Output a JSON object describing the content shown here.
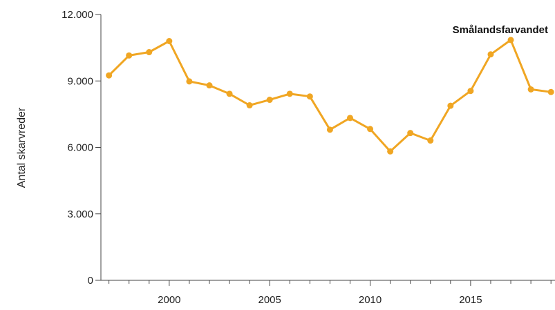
{
  "chart_data": {
    "type": "line",
    "title": "Smålandsfarvandet",
    "xlabel": "",
    "ylabel": "Antal skarvreder",
    "xlim": [
      1996.6,
      2019.2
    ],
    "ylim": [
      0,
      12000
    ],
    "x_ticks": [
      2000,
      2005,
      2010,
      2015
    ],
    "x_tick_labels": [
      "2000",
      "2005",
      "2010",
      "2015"
    ],
    "y_ticks": [
      0,
      3000,
      6000,
      9000,
      12000
    ],
    "y_tick_labels": [
      "0",
      "3.000",
      "6.000",
      "9.000",
      "12.000"
    ],
    "grid": false,
    "color": "#f0a623",
    "series": [
      {
        "x": [
          1997,
          1998,
          1999,
          2000,
          2001,
          2002,
          2003,
          2004,
          2005,
          2006,
          2007,
          2008,
          2009,
          2010,
          2011,
          2012,
          2013,
          2014,
          2015,
          2016,
          2017,
          2018,
          2019
        ],
        "values": [
          9250,
          10150,
          10300,
          10800,
          8980,
          8800,
          8420,
          7900,
          8150,
          8420,
          8300,
          6800,
          7330,
          6830,
          5820,
          6650,
          6310,
          7880,
          8550,
          10200,
          10850,
          8620,
          8500
        ]
      }
    ]
  }
}
